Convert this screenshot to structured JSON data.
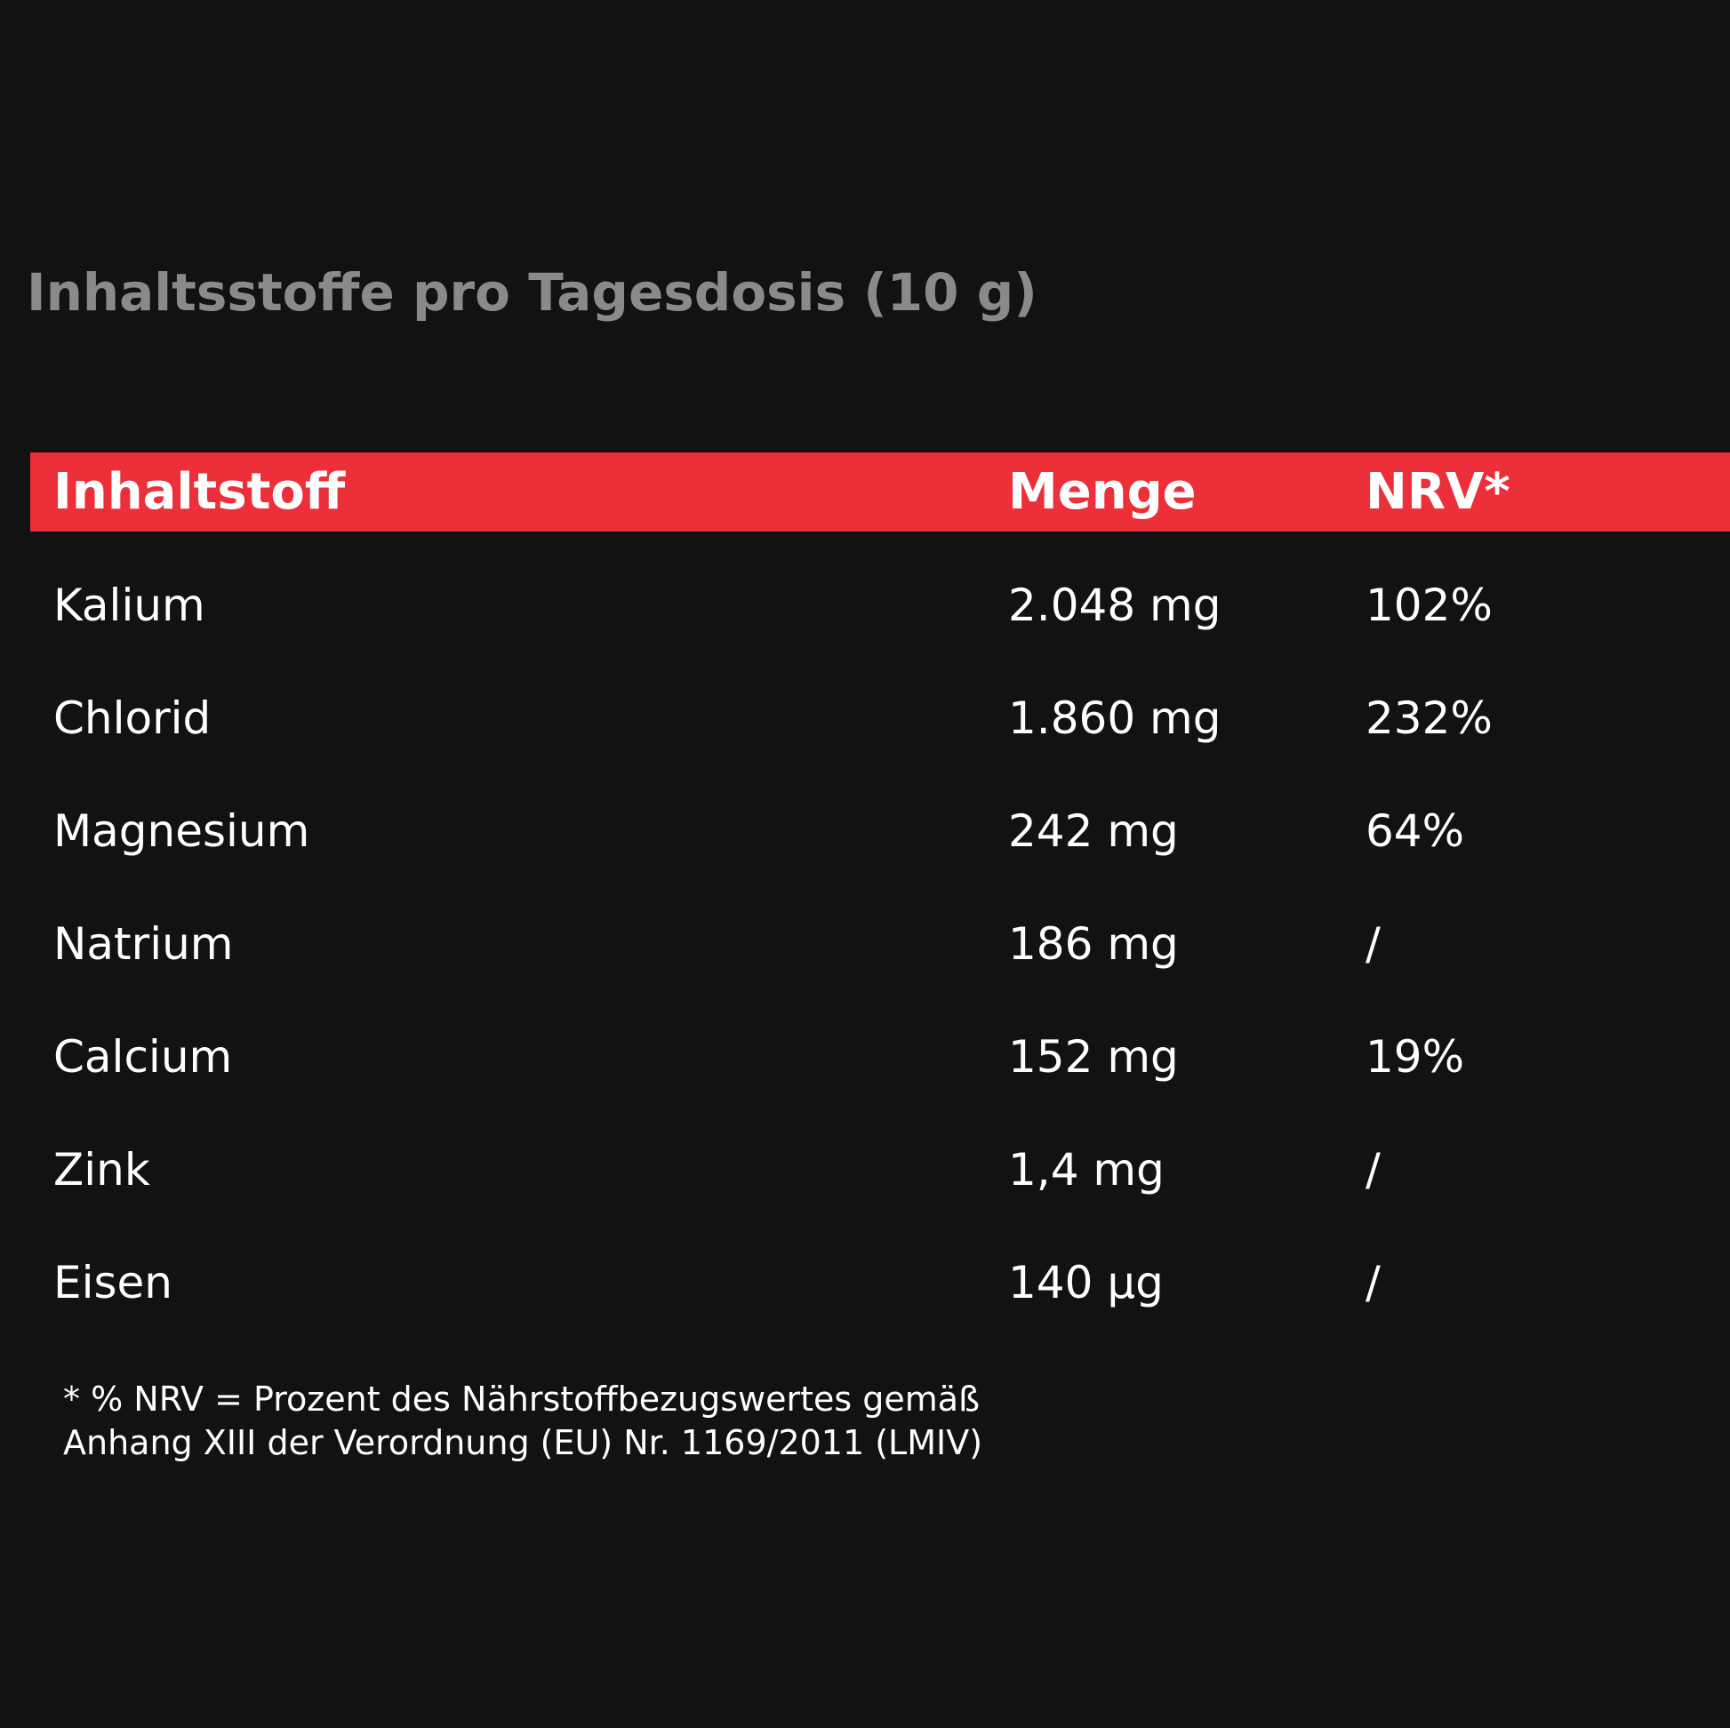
{
  "title": "Inhaltsstoffe pro Tagesdosis (10 g)",
  "table": {
    "header": [
      "Inhaltstoff",
      "Menge",
      "NRV*"
    ],
    "rows": [
      [
        "Kalium",
        "2.048 mg",
        "102%"
      ],
      [
        "Chlorid",
        "1.860 mg",
        "232%"
      ],
      [
        "Magnesium",
        "242 mg",
        "64%"
      ],
      [
        "Natrium",
        "186 mg",
        "/"
      ],
      [
        "Calcium",
        "152 mg",
        "19%"
      ],
      [
        "Zink",
        "1,4 mg",
        "/"
      ],
      [
        "Eisen",
        "140 µg",
        "/"
      ]
    ]
  },
  "footnote": [
    "* % NRV = Prozent des Nährstoffbezugswertes gemäß",
    "Anhang XIII der Verordnung (EU) Nr. 1169/2011 (LMIV)"
  ]
}
